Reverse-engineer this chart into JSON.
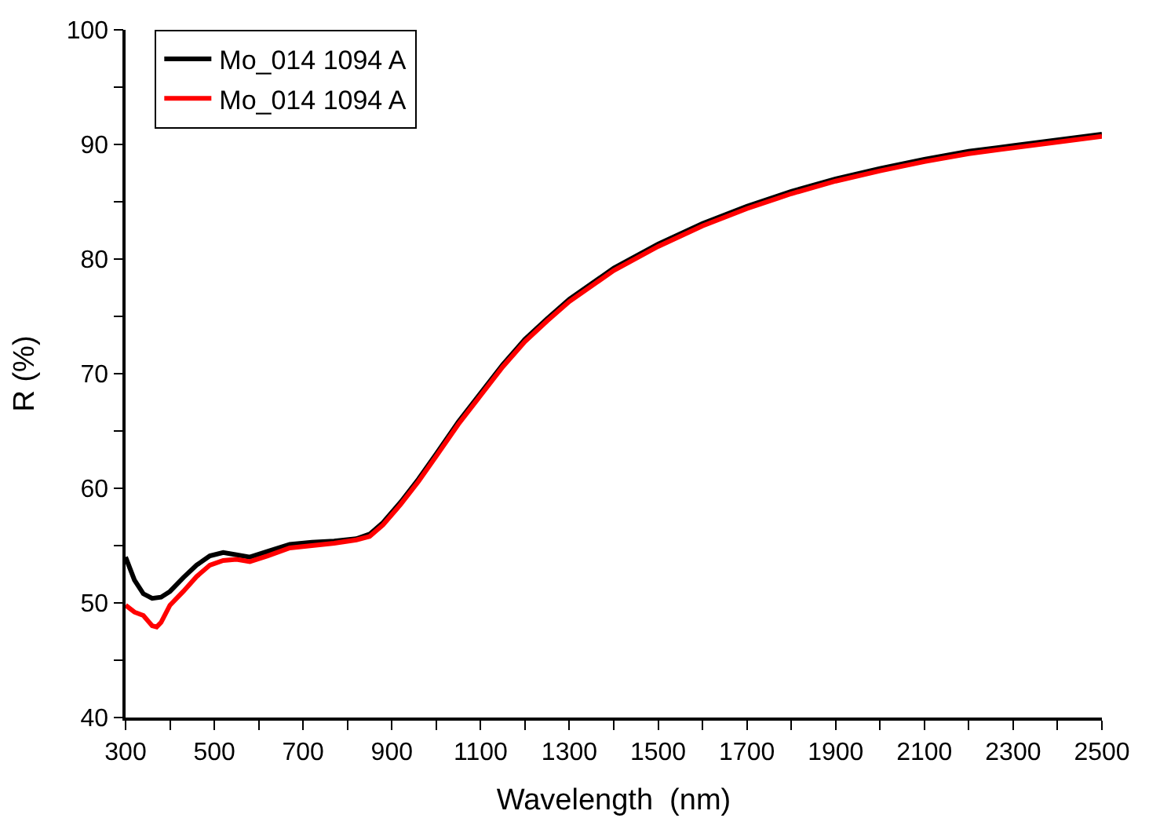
{
  "chart_data": {
    "type": "line",
    "xlabel": "Wavelength  (nm)",
    "ylabel": "R (%)",
    "xlim": [
      300,
      2500
    ],
    "ylim": [
      40,
      100
    ],
    "xticks": [
      300,
      {
        "value": 400,
        "label": null
      },
      500,
      {
        "value": 600,
        "label": null
      },
      700,
      {
        "value": 800,
        "label": null
      },
      900,
      {
        "value": 1000,
        "label": null
      },
      1100,
      {
        "value": 1200,
        "label": null
      },
      1300,
      {
        "value": 1400,
        "label": null
      },
      1500,
      {
        "value": 1600,
        "label": null
      },
      1700,
      {
        "value": 1800,
        "label": null
      },
      1900,
      {
        "value": 2000,
        "label": null
      },
      2100,
      {
        "value": 2200,
        "label": null
      },
      2300,
      {
        "value": 2400,
        "label": null
      },
      2500
    ],
    "yticks": [
      40,
      {
        "value": 45,
        "label": null
      },
      50,
      {
        "value": 55,
        "label": null
      },
      60,
      {
        "value": 65,
        "label": null
      },
      70,
      {
        "value": 75,
        "label": null
      },
      80,
      {
        "value": 85,
        "label": null
      },
      90,
      {
        "value": 95,
        "label": null
      },
      100
    ],
    "legend": "top left",
    "marker": "none",
    "line_style": "solid",
    "series": [
      {
        "name": "Mo_014 1094 A",
        "color": "#000000",
        "x": [
          300,
          320,
          340,
          360,
          380,
          400,
          430,
          460,
          490,
          520,
          550,
          580,
          620,
          670,
          720,
          770,
          820,
          850,
          880,
          920,
          960,
          1000,
          1050,
          1100,
          1150,
          1200,
          1250,
          1300,
          1400,
          1500,
          1600,
          1700,
          1800,
          1900,
          2000,
          2100,
          2200,
          2300,
          2400,
          2500
        ],
        "values": [
          54.0,
          52.0,
          50.8,
          50.4,
          50.5,
          51.0,
          52.2,
          53.3,
          54.1,
          54.4,
          54.2,
          54.0,
          54.5,
          55.1,
          55.3,
          55.4,
          55.6,
          56.0,
          57.0,
          58.8,
          60.8,
          63.0,
          65.8,
          68.3,
          70.8,
          73.0,
          74.8,
          76.5,
          79.2,
          81.3,
          83.1,
          84.6,
          85.9,
          87.0,
          87.9,
          88.7,
          89.4,
          89.9,
          90.4,
          90.9
        ]
      },
      {
        "name": "Mo_014 1094 A",
        "color": "#ff0000",
        "x": [
          300,
          320,
          340,
          360,
          370,
          380,
          400,
          430,
          460,
          490,
          520,
          550,
          580,
          620,
          670,
          720,
          770,
          820,
          850,
          880,
          920,
          960,
          1000,
          1050,
          1100,
          1150,
          1200,
          1250,
          1300,
          1400,
          1500,
          1600,
          1700,
          1800,
          1900,
          2000,
          2100,
          2200,
          2300,
          2400,
          2500
        ],
        "values": [
          49.8,
          49.2,
          48.9,
          48.0,
          47.9,
          48.3,
          49.8,
          51.0,
          52.3,
          53.3,
          53.7,
          53.8,
          53.6,
          54.1,
          54.8,
          55.0,
          55.2,
          55.5,
          55.8,
          56.8,
          58.6,
          60.6,
          62.8,
          65.6,
          68.1,
          70.6,
          72.8,
          74.6,
          76.3,
          79.0,
          81.1,
          82.9,
          84.4,
          85.7,
          86.8,
          87.7,
          88.5,
          89.2,
          89.7,
          90.2,
          90.7
        ]
      }
    ]
  }
}
